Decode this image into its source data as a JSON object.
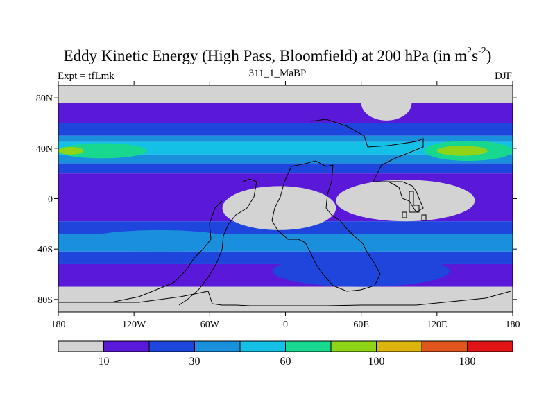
{
  "chart_data": {
    "type": "heatmap",
    "title_main": "Eddy Kinetic Energy (High Pass, Bloomfield) at 200 hPa (in m",
    "title_sup1": "2",
    "title_mid": "s",
    "title_sup2": "-2",
    "title_end": ")",
    "left_label": "Expt = tfLmk",
    "center_label": "311_1_MaBP",
    "right_label": "DJF",
    "x_ticks": [
      "180",
      "120W",
      "60W",
      "0",
      "60E",
      "120E",
      "180"
    ],
    "x_values": [
      -180,
      -120,
      -60,
      0,
      60,
      120,
      180
    ],
    "y_ticks": [
      "80N",
      "40N",
      "0",
      "40S",
      "80S"
    ],
    "y_values": [
      80,
      40,
      0,
      -40,
      -80
    ],
    "xlim": [
      -180,
      180
    ],
    "ylim": [
      -90,
      90
    ],
    "colorbar": {
      "colors": [
        "#d3d3d3",
        "#5a18d8",
        "#1e46dc",
        "#1a8fdc",
        "#14c0e6",
        "#18d890",
        "#90d418",
        "#dcb40e",
        "#e0561c",
        "#e01414"
      ],
      "labels": [
        "10",
        "30",
        "60",
        "100",
        "180"
      ]
    },
    "zonal_bands": [
      {
        "lat_top": 90,
        "lat_bottom": 76,
        "level": 0
      },
      {
        "lat_top": 76,
        "lat_bottom": 60,
        "level": 1
      },
      {
        "lat_top": 60,
        "lat_bottom": 50,
        "level": 2
      },
      {
        "lat_top": 50,
        "lat_bottom": 45,
        "level": 3
      },
      {
        "lat_top": 45,
        "lat_bottom": 35,
        "level": 4
      },
      {
        "lat_top": 35,
        "lat_bottom": 28,
        "level": 3
      },
      {
        "lat_top": 28,
        "lat_bottom": 20,
        "level": 2
      },
      {
        "lat_top": 20,
        "lat_bottom": -18,
        "level": 1
      },
      {
        "lat_top": -18,
        "lat_bottom": -28,
        "level": 2
      },
      {
        "lat_top": -28,
        "lat_bottom": -42,
        "level": 3
      },
      {
        "lat_top": -42,
        "lat_bottom": -52,
        "level": 2
      },
      {
        "lat_top": -52,
        "lat_bottom": -70,
        "level": 1
      },
      {
        "lat_top": -70,
        "lat_bottom": -90,
        "level": 0
      }
    ],
    "regions": [
      {
        "name": "jet-core-west",
        "level": 5,
        "lon": [
          -180,
          -110
        ],
        "lat": [
          44,
          32
        ]
      },
      {
        "name": "jet-peak-west",
        "level": 6,
        "lon": [
          -180,
          -160
        ],
        "lat": [
          41,
          35
        ]
      },
      {
        "name": "jet-core-east",
        "level": 5,
        "lon": [
          110,
          180
        ],
        "lat": [
          46,
          30
        ]
      },
      {
        "name": "jet-peak-east",
        "level": 6,
        "lon": [
          120,
          160
        ],
        "lat": [
          42,
          34
        ]
      },
      {
        "name": "tropics-africa-low",
        "level": 0,
        "lon": [
          -50,
          40
        ],
        "lat": [
          10,
          -25
        ]
      },
      {
        "name": "tropics-asia-low",
        "level": 0,
        "lon": [
          40,
          150
        ],
        "lat": [
          15,
          -18
        ]
      },
      {
        "name": "arctic-trough",
        "level": 0,
        "lon": [
          60,
          100
        ],
        "lat": [
          90,
          62
        ]
      },
      {
        "name": "south-atlantic-core",
        "level": 3,
        "lon": [
          -160,
          -40
        ],
        "lat": [
          -25,
          -42
        ]
      },
      {
        "name": "indian-ocean-core",
        "level": 2,
        "lon": [
          -10,
          130
        ],
        "lat": [
          -45,
          -70
        ]
      }
    ]
  }
}
